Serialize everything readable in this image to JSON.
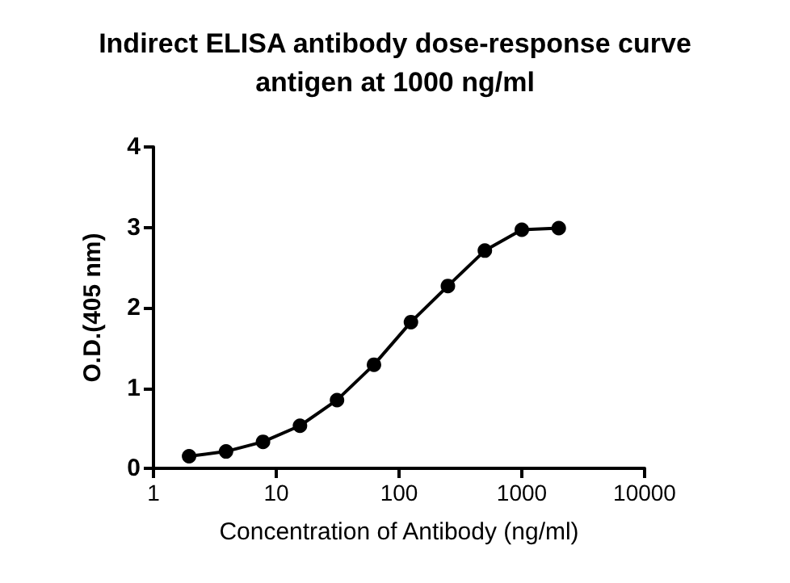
{
  "chart_data": {
    "type": "line",
    "title": "Indirect ELISA antibody dose-response curve\nantigen at 1000 ng/ml",
    "xlabel": "Concentration of Antibody (ng/ml)",
    "ylabel": "O.D.(405 nm)",
    "x": [
      1.95,
      3.9,
      7.8,
      15.6,
      31.25,
      62.5,
      125,
      250,
      500,
      1000,
      2000
    ],
    "series": [
      {
        "color": "#000000",
        "values": [
          0.15,
          0.21,
          0.33,
          0.53,
          0.85,
          1.29,
          1.82,
          2.27,
          2.71,
          2.97,
          2.99
        ]
      }
    ],
    "log": "x",
    "xlim": [
      1,
      10000
    ],
    "xticks": [
      1,
      10,
      100,
      1000,
      10000
    ],
    "ylim": [
      0,
      4
    ],
    "yticks": [
      0,
      1,
      2,
      3,
      4
    ],
    "marker": "circle",
    "line_style": "solid"
  }
}
